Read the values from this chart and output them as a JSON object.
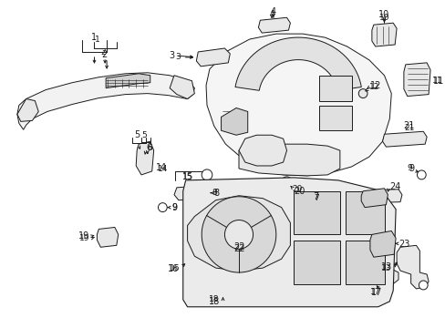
{
  "bg_color": "#ffffff",
  "line_color": "#1a1a1a",
  "fig_width": 4.89,
  "fig_height": 3.6,
  "dpi": 100,
  "lw": 0.7,
  "gray_fill": "#e8e8e8",
  "light_fill": "#f2f2f2",
  "mid_fill": "#d0d0d0",
  "inset_fill": "#ebebeb"
}
